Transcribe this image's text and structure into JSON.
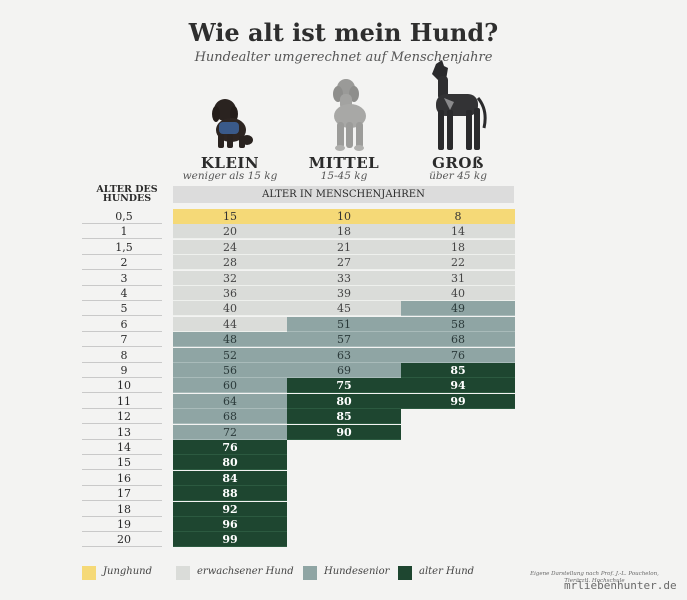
{
  "title": "Wie alt ist mein Hund?",
  "subtitle": "Hundealter umgerechnet auf Menschenjahre",
  "sizes": [
    {
      "name": "KLEIN",
      "weight": "weniger als 15 kg"
    },
    {
      "name": "MITTEL",
      "weight": "15-45 kg"
    },
    {
      "name": "GROß",
      "weight": "über 45 kg"
    }
  ],
  "age_header": "ALTER DES HUNDES",
  "human_header": "ALTER IN MENSCHENJAHREN",
  "rows": [
    {
      "age": "0,5",
      "v": [
        "15",
        "10",
        "8"
      ],
      "c": [
        "y",
        "y",
        "y"
      ]
    },
    {
      "age": "1",
      "v": [
        "20",
        "18",
        "14"
      ],
      "c": [
        "l",
        "l",
        "l"
      ]
    },
    {
      "age": "1,5",
      "v": [
        "24",
        "21",
        "18"
      ],
      "c": [
        "l",
        "l",
        "l"
      ]
    },
    {
      "age": "2",
      "v": [
        "28",
        "27",
        "22"
      ],
      "c": [
        "l",
        "l",
        "l"
      ]
    },
    {
      "age": "3",
      "v": [
        "32",
        "33",
        "31"
      ],
      "c": [
        "l",
        "l",
        "l"
      ]
    },
    {
      "age": "4",
      "v": [
        "36",
        "39",
        "40"
      ],
      "c": [
        "l",
        "l",
        "l"
      ]
    },
    {
      "age": "5",
      "v": [
        "40",
        "45",
        "49"
      ],
      "c": [
        "l",
        "l",
        "m"
      ]
    },
    {
      "age": "6",
      "v": [
        "44",
        "51",
        "58"
      ],
      "c": [
        "l",
        "m",
        "m"
      ]
    },
    {
      "age": "7",
      "v": [
        "48",
        "57",
        "68"
      ],
      "c": [
        "m",
        "m",
        "m"
      ]
    },
    {
      "age": "8",
      "v": [
        "52",
        "63",
        "76"
      ],
      "c": [
        "m",
        "m",
        "m"
      ]
    },
    {
      "age": "9",
      "v": [
        "56",
        "69",
        "85"
      ],
      "c": [
        "m",
        "m",
        "d"
      ]
    },
    {
      "age": "10",
      "v": [
        "60",
        "75",
        "94"
      ],
      "c": [
        "m",
        "d",
        "d"
      ]
    },
    {
      "age": "11",
      "v": [
        "64",
        "80",
        "99"
      ],
      "c": [
        "m",
        "d",
        "d"
      ]
    },
    {
      "age": "12",
      "v": [
        "68",
        "85",
        ""
      ],
      "c": [
        "m",
        "d",
        ""
      ]
    },
    {
      "age": "13",
      "v": [
        "72",
        "90",
        ""
      ],
      "c": [
        "m",
        "d",
        ""
      ]
    },
    {
      "age": "14",
      "v": [
        "76",
        "",
        ""
      ],
      "c": [
        "d",
        "",
        ""
      ]
    },
    {
      "age": "15",
      "v": [
        "80",
        "",
        ""
      ],
      "c": [
        "d",
        "",
        ""
      ]
    },
    {
      "age": "16",
      "v": [
        "84",
        "",
        ""
      ],
      "c": [
        "d",
        "",
        ""
      ]
    },
    {
      "age": "17",
      "v": [
        "88",
        "",
        ""
      ],
      "c": [
        "d",
        "",
        ""
      ]
    },
    {
      "age": "18",
      "v": [
        "92",
        "",
        ""
      ],
      "c": [
        "d",
        "",
        ""
      ]
    },
    {
      "age": "19",
      "v": [
        "96",
        "",
        ""
      ],
      "c": [
        "d",
        "",
        ""
      ]
    },
    {
      "age": "20",
      "v": [
        "99",
        "",
        ""
      ],
      "c": [
        "d",
        "",
        ""
      ]
    }
  ],
  "legend": [
    {
      "label": "Junghund",
      "color": "#f5d977"
    },
    {
      "label": "erwachsener Hund",
      "color": "#dadcd9"
    },
    {
      "label": "Hundesenior",
      "color": "#8fa5a4"
    },
    {
      "label": "alter Hund",
      "color": "#1e4630"
    }
  ],
  "source": "Eigene Darstellung nach Prof. J.-L. Pouchelon, Tierärztl. Hochschule",
  "watermark": "mrliebenhunter.de",
  "icons": [
    "small-dog-icon",
    "medium-dog-icon",
    "large-dog-icon"
  ]
}
